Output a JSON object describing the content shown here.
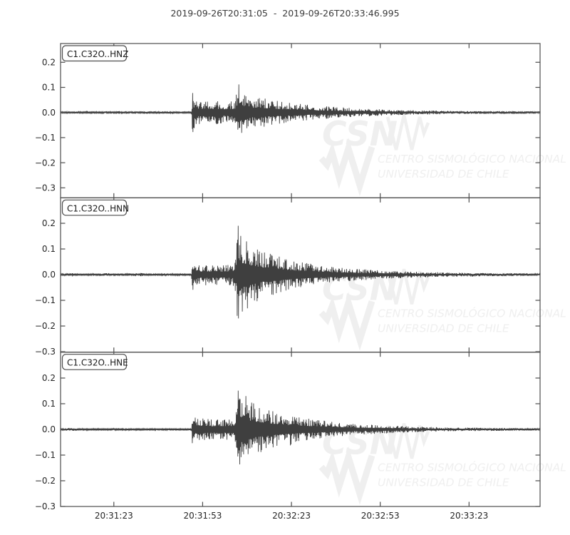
{
  "figure": {
    "title": "2019-09-26T20:31:05  -  2019-09-26T20:33:46.995",
    "background_color": "#ffffff"
  },
  "colors": {
    "axis": "#4d4d4d",
    "trace": "#3f3f3f",
    "tick_text": "#262626",
    "watermark": "#efefef"
  },
  "watermark": {
    "acronym": "CSN",
    "line1": "CENTRO SISMOLÓGICO NACIONAL",
    "line2": "UNIVERSIDAD DE CHILE"
  },
  "chart_data": {
    "type": "line",
    "subtype": "seismogram-multitrace",
    "title": "2019-09-26T20:31:05  -  2019-09-26T20:33:46.995",
    "time_start": "2019-09-26T20:31:05",
    "time_end": "2019-09-26T20:33:46.995",
    "duration_seconds": 161.995,
    "grid": false,
    "ylim": [
      -0.34,
      0.28
    ],
    "y_tick_values": [
      0.2,
      0.1,
      0.0,
      -0.1,
      -0.2,
      -0.3
    ],
    "y_tick_labels": [
      "0.2",
      "0.1",
      "0.0",
      "−0.1",
      "−0.2",
      "−0.3"
    ],
    "x_ticks": [
      {
        "t": 18,
        "label": "20:31:23"
      },
      {
        "t": 48,
        "label": "20:31:53"
      },
      {
        "t": 78,
        "label": "20:32:23"
      },
      {
        "t": 108,
        "label": "20:32:53"
      },
      {
        "t": 138,
        "label": "20:33:23"
      }
    ],
    "panels": [
      {
        "label": "C1.C32O..HNZ",
        "max_amplitude": 0.105,
        "min_amplitude": -0.13,
        "p_onset_s": 44.6,
        "s_onset_s": 59.8,
        "envelope": [
          [
            0,
            0.0035
          ],
          [
            13,
            0.0035
          ],
          [
            15,
            0.0055
          ],
          [
            17,
            0.004
          ],
          [
            22,
            0.0055
          ],
          [
            25,
            0.004
          ],
          [
            30,
            0.0055
          ],
          [
            33,
            0.004
          ],
          [
            44.2,
            0.0035
          ],
          [
            44.6,
            0.085
          ],
          [
            45.5,
            0.05
          ],
          [
            47,
            0.047
          ],
          [
            49,
            0.05
          ],
          [
            51,
            0.044
          ],
          [
            53,
            0.047
          ],
          [
            55,
            0.042
          ],
          [
            57,
            0.045
          ],
          [
            58.8,
            0.042
          ],
          [
            59.5,
            0.08
          ],
          [
            60.1,
            0.128
          ],
          [
            60.9,
            0.105
          ],
          [
            61.7,
            0.082
          ],
          [
            62.6,
            0.095
          ],
          [
            63.6,
            0.072
          ],
          [
            65,
            0.062
          ],
          [
            67,
            0.066
          ],
          [
            69,
            0.056
          ],
          [
            71,
            0.05
          ],
          [
            74,
            0.045
          ],
          [
            77,
            0.04
          ],
          [
            80,
            0.036
          ],
          [
            84,
            0.03
          ],
          [
            88,
            0.026
          ],
          [
            93,
            0.022
          ],
          [
            98,
            0.018
          ],
          [
            104,
            0.015
          ],
          [
            110,
            0.012
          ],
          [
            118,
            0.0095
          ],
          [
            126,
            0.0075
          ],
          [
            135,
            0.006
          ],
          [
            145,
            0.005
          ],
          [
            155,
            0.0045
          ],
          [
            161.995,
            0.004
          ]
        ]
      },
      {
        "label": "C1.C32O..HNN",
        "max_amplitude": 0.215,
        "min_amplitude": -0.23,
        "p_onset_s": 44.6,
        "s_onset_s": 59.9,
        "envelope": [
          [
            0,
            0.003
          ],
          [
            4,
            0.0065
          ],
          [
            6,
            0.0035
          ],
          [
            10,
            0.003
          ],
          [
            16,
            0.006
          ],
          [
            18.5,
            0.0035
          ],
          [
            27,
            0.0065
          ],
          [
            29.5,
            0.0035
          ],
          [
            36,
            0.005
          ],
          [
            38,
            0.003
          ],
          [
            44.2,
            0.003
          ],
          [
            44.6,
            0.068
          ],
          [
            45.6,
            0.04
          ],
          [
            47,
            0.038
          ],
          [
            49,
            0.042
          ],
          [
            51,
            0.037
          ],
          [
            53,
            0.04
          ],
          [
            55,
            0.037
          ],
          [
            57,
            0.04
          ],
          [
            58.6,
            0.046
          ],
          [
            59.3,
            0.1
          ],
          [
            59.9,
            0.23
          ],
          [
            60.6,
            0.19
          ],
          [
            61.3,
            0.15
          ],
          [
            62.2,
            0.14
          ],
          [
            63.2,
            0.148
          ],
          [
            64.2,
            0.12
          ],
          [
            65.6,
            0.11
          ],
          [
            67,
            0.1
          ],
          [
            68.6,
            0.09
          ],
          [
            70,
            0.094
          ],
          [
            72,
            0.08
          ],
          [
            74,
            0.07
          ],
          [
            76.5,
            0.062
          ],
          [
            79,
            0.055
          ],
          [
            82,
            0.048
          ],
          [
            85,
            0.042
          ],
          [
            88,
            0.036
          ],
          [
            92,
            0.031
          ],
          [
            96,
            0.026
          ],
          [
            101,
            0.022
          ],
          [
            106,
            0.018
          ],
          [
            112,
            0.015
          ],
          [
            118,
            0.012
          ],
          [
            125,
            0.01
          ],
          [
            133,
            0.008
          ],
          [
            141,
            0.0065
          ],
          [
            150,
            0.0055
          ],
          [
            161.995,
            0.0045
          ]
        ]
      },
      {
        "label": "C1.C32O..HNE",
        "max_amplitude": 0.19,
        "min_amplitude": -0.18,
        "p_onset_s": 44.6,
        "s_onset_s": 59.8,
        "envelope": [
          [
            0,
            0.0035
          ],
          [
            4.5,
            0.007
          ],
          [
            6.5,
            0.004
          ],
          [
            12,
            0.0035
          ],
          [
            20,
            0.0045
          ],
          [
            22,
            0.0035
          ],
          [
            44.2,
            0.0035
          ],
          [
            44.6,
            0.07
          ],
          [
            45.7,
            0.045
          ],
          [
            47,
            0.041
          ],
          [
            49,
            0.045
          ],
          [
            51,
            0.04
          ],
          [
            53,
            0.044
          ],
          [
            55,
            0.04
          ],
          [
            57,
            0.042
          ],
          [
            58.6,
            0.047
          ],
          [
            59.2,
            0.09
          ],
          [
            59.8,
            0.195
          ],
          [
            60.4,
            0.13
          ],
          [
            61.1,
            0.16
          ],
          [
            61.9,
            0.175
          ],
          [
            62.7,
            0.128
          ],
          [
            63.7,
            0.118
          ],
          [
            64.7,
            0.108
          ],
          [
            66,
            0.1
          ],
          [
            68,
            0.09
          ],
          [
            70,
            0.08
          ],
          [
            72,
            0.071
          ],
          [
            74.5,
            0.063
          ],
          [
            77,
            0.056
          ],
          [
            77.8,
            0.068
          ],
          [
            78.6,
            0.052
          ],
          [
            80,
            0.049
          ],
          [
            83,
            0.044
          ],
          [
            86,
            0.038
          ],
          [
            90,
            0.033
          ],
          [
            94,
            0.028
          ],
          [
            98,
            0.024
          ],
          [
            103,
            0.02
          ],
          [
            108,
            0.017
          ],
          [
            114,
            0.014
          ],
          [
            120,
            0.011
          ],
          [
            127,
            0.009
          ],
          [
            135,
            0.0075
          ],
          [
            144,
            0.006
          ],
          [
            153,
            0.005
          ],
          [
            161.995,
            0.0045
          ]
        ]
      }
    ]
  }
}
